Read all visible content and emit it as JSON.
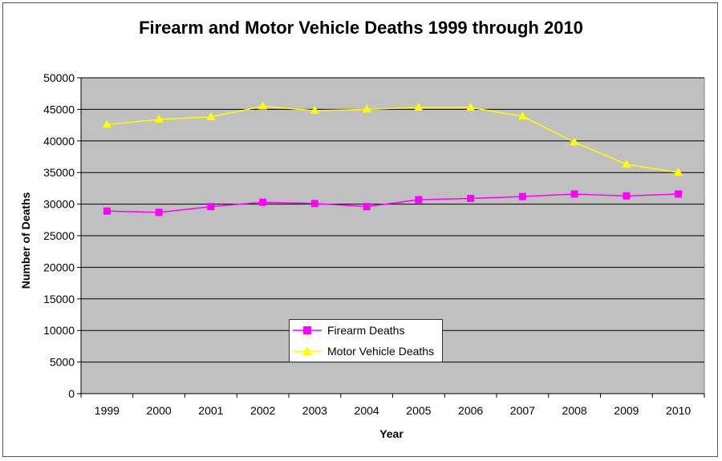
{
  "chart_data": {
    "type": "line",
    "title": "Firearm and Motor Vehicle Deaths 1999 through 2010",
    "xlabel": "Year",
    "ylabel": "Number of Deaths",
    "categories": [
      "1999",
      "2000",
      "2001",
      "2002",
      "2003",
      "2004",
      "2005",
      "2006",
      "2007",
      "2008",
      "2009",
      "2010"
    ],
    "ylim": [
      0,
      50000
    ],
    "yticks": [
      0,
      5000,
      10000,
      15000,
      20000,
      25000,
      30000,
      35000,
      40000,
      45000,
      50000
    ],
    "grid": true,
    "legend_position": "bottom-center",
    "series": [
      {
        "name": "Firearm Deaths",
        "color": "#ff00ff",
        "marker": "square",
        "values": [
          28900,
          28700,
          29600,
          30300,
          30100,
          29600,
          30700,
          30900,
          31200,
          31600,
          31300,
          31600
        ]
      },
      {
        "name": "Motor Vehicle Deaths",
        "color": "#ffff00",
        "marker": "triangle",
        "values": [
          42600,
          43400,
          43800,
          45500,
          44800,
          45000,
          45300,
          45300,
          43900,
          39800,
          36300,
          35000
        ]
      }
    ]
  },
  "colors": {
    "plot_background": "#c0c0c0",
    "gridline": "#000000"
  }
}
